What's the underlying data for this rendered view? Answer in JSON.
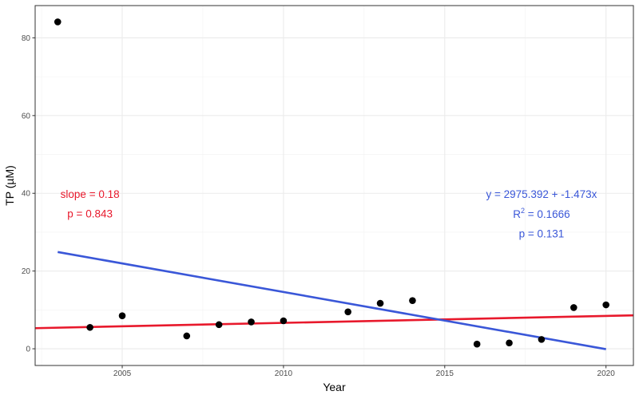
{
  "chart_data": {
    "type": "scatter",
    "xlabel": "Year",
    "ylabel": "TP (µM)",
    "xlim": [
      2002.3,
      2020.85
    ],
    "ylim": [
      -4.3,
      88.3
    ],
    "x_ticks": [
      2005,
      2010,
      2015,
      2020
    ],
    "x_tick_labels": [
      "2005",
      "2010",
      "2015",
      "2020"
    ],
    "y_ticks": [
      0,
      20,
      40,
      60,
      80
    ],
    "y_tick_labels": [
      "0",
      "20",
      "40",
      "60",
      "80"
    ],
    "grid": true,
    "points": [
      {
        "x": 2003,
        "y": 84.1
      },
      {
        "x": 2004,
        "y": 5.5
      },
      {
        "x": 2005,
        "y": 8.5
      },
      {
        "x": 2007,
        "y": 3.3
      },
      {
        "x": 2008,
        "y": 6.2
      },
      {
        "x": 2009,
        "y": 6.9
      },
      {
        "x": 2010,
        "y": 7.2
      },
      {
        "x": 2012,
        "y": 9.5
      },
      {
        "x": 2013,
        "y": 11.7
      },
      {
        "x": 2014,
        "y": 12.4
      },
      {
        "x": 2016,
        "y": 1.2
      },
      {
        "x": 2017,
        "y": 1.5
      },
      {
        "x": 2018,
        "y": 2.4
      },
      {
        "x": 2019,
        "y": 10.6
      },
      {
        "x": 2020,
        "y": 11.3
      }
    ],
    "trend_lines": [
      {
        "color": "#e8192c",
        "x": [
          2002.3,
          2020.85
        ],
        "y": [
          5.3,
          8.6
        ]
      },
      {
        "color": "#3a57d8",
        "x": [
          2003,
          2020
        ],
        "y": [
          24.9,
          -0.1
        ]
      }
    ],
    "annotations": {
      "red": {
        "color": "#e8192c",
        "lines": [
          {
            "text": "slope = 0.18",
            "x": 2004.0,
            "y": 39.7
          },
          {
            "text": "p = 0.843",
            "x": 2004.0,
            "y": 34.7
          }
        ]
      },
      "blue": {
        "color": "#3a57d8",
        "equation": {
          "text": "y = 2975.392 + -1.473x",
          "x": 2018.0,
          "y": 39.7
        },
        "r2": {
          "prefix": "R",
          "sup": "2",
          "suffix": " = 0.1666",
          "x": 2018.0,
          "y": 34.6
        },
        "p": {
          "text": "p = 0.131",
          "x": 2018.0,
          "y": 29.6
        }
      }
    }
  }
}
